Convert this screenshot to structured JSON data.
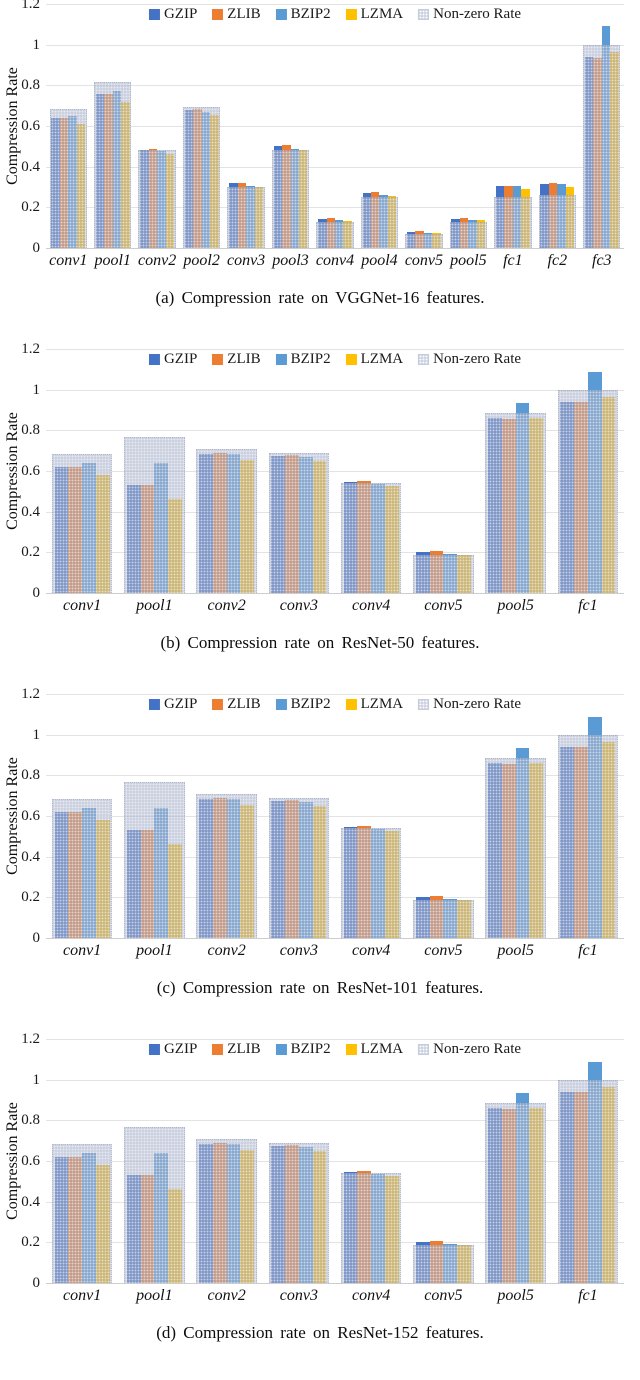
{
  "axis": {
    "y_label": "Compression Rate",
    "y_ticks": [
      "0",
      "0.2",
      "0.4",
      "0.6",
      "0.8",
      "1",
      "1.2"
    ],
    "y_max": 1.2
  },
  "legend": {
    "items": [
      {
        "label": "GZIP",
        "color": "#4472C4"
      },
      {
        "label": "ZLIB",
        "color": "#ED7D31"
      },
      {
        "label": "BZIP2",
        "color": "#5B9BD5"
      },
      {
        "label": "LZMA",
        "color": "#FFC000"
      },
      {
        "label": "Non-zero Rate",
        "color": "#CED4E1",
        "pattern": "dots"
      }
    ]
  },
  "chart_data": [
    {
      "id": "a",
      "type": "bar",
      "title": "(a) Compression rate on VGGNet-16 features.",
      "ylabel": "Compression Rate",
      "ylim": [
        0,
        1.2
      ],
      "grid": true,
      "legend_position": "top",
      "categories": [
        "conv1",
        "pool1",
        "conv2",
        "pool2",
        "conv3",
        "pool3",
        "conv4",
        "pool4",
        "conv5",
        "pool5",
        "fc1",
        "fc2",
        "fc3"
      ],
      "series": [
        {
          "name": "GZIP",
          "values": [
            0.64,
            0.755,
            0.48,
            0.68,
            0.32,
            0.5,
            0.145,
            0.27,
            0.08,
            0.145,
            0.305,
            0.315,
            0.94
          ]
        },
        {
          "name": "ZLIB",
          "values": [
            0.64,
            0.755,
            0.485,
            0.685,
            0.32,
            0.505,
            0.147,
            0.275,
            0.083,
            0.147,
            0.307,
            0.32,
            0.935
          ]
        },
        {
          "name": "BZIP2",
          "values": [
            0.648,
            0.77,
            0.475,
            0.67,
            0.307,
            0.487,
            0.14,
            0.26,
            0.075,
            0.14,
            0.305,
            0.317,
            1.09
          ]
        },
        {
          "name": "LZMA",
          "values": [
            0.61,
            0.72,
            0.46,
            0.655,
            0.3,
            0.48,
            0.134,
            0.255,
            0.072,
            0.138,
            0.29,
            0.3,
            0.965
          ]
        },
        {
          "name": "Non-zero Rate",
          "values": [
            0.685,
            0.815,
            0.48,
            0.695,
            0.3,
            0.48,
            0.13,
            0.25,
            0.07,
            0.13,
            0.25,
            0.26,
            1.0
          ]
        }
      ]
    },
    {
      "id": "b",
      "type": "bar",
      "title": "(b) Compression rate on ResNet-50 features.",
      "ylabel": "Compression Rate",
      "ylim": [
        0,
        1.2
      ],
      "grid": true,
      "legend_position": "top",
      "categories": [
        "conv1",
        "pool1",
        "conv2",
        "conv3",
        "conv4",
        "conv5",
        "pool5",
        "fc1"
      ],
      "series": [
        {
          "name": "GZIP",
          "values": [
            0.62,
            0.53,
            0.685,
            0.675,
            0.548,
            0.2,
            0.86,
            0.94
          ]
        },
        {
          "name": "ZLIB",
          "values": [
            0.62,
            0.53,
            0.687,
            0.677,
            0.55,
            0.205,
            0.858,
            0.94
          ]
        },
        {
          "name": "BZIP2",
          "values": [
            0.64,
            0.64,
            0.684,
            0.667,
            0.538,
            0.19,
            0.935,
            1.085
          ]
        },
        {
          "name": "LZMA",
          "values": [
            0.58,
            0.46,
            0.655,
            0.65,
            0.528,
            0.188,
            0.862,
            0.965
          ]
        },
        {
          "name": "Non-zero Rate",
          "values": [
            0.685,
            0.765,
            0.71,
            0.69,
            0.54,
            0.185,
            0.885,
            1.0
          ]
        }
      ]
    },
    {
      "id": "c",
      "type": "bar",
      "title": "(c) Compression rate on ResNet-101 features.",
      "ylabel": "Compression Rate",
      "ylim": [
        0,
        1.2
      ],
      "grid": true,
      "legend_position": "top",
      "categories": [
        "conv1",
        "pool1",
        "conv2",
        "conv3",
        "conv4",
        "conv5",
        "pool5",
        "fc1"
      ],
      "series": [
        {
          "name": "GZIP",
          "values": [
            0.62,
            0.53,
            0.685,
            0.675,
            0.548,
            0.2,
            0.86,
            0.94
          ]
        },
        {
          "name": "ZLIB",
          "values": [
            0.62,
            0.53,
            0.687,
            0.677,
            0.55,
            0.205,
            0.858,
            0.94
          ]
        },
        {
          "name": "BZIP2",
          "values": [
            0.64,
            0.64,
            0.684,
            0.667,
            0.538,
            0.19,
            0.935,
            1.085
          ]
        },
        {
          "name": "LZMA",
          "values": [
            0.58,
            0.46,
            0.655,
            0.65,
            0.528,
            0.188,
            0.862,
            0.965
          ]
        },
        {
          "name": "Non-zero Rate",
          "values": [
            0.685,
            0.765,
            0.71,
            0.69,
            0.54,
            0.185,
            0.885,
            1.0
          ]
        }
      ]
    },
    {
      "id": "d",
      "type": "bar",
      "title": "(d) Compression rate on ResNet-152 features.",
      "ylabel": "Compression Rate",
      "ylim": [
        0,
        1.2
      ],
      "grid": true,
      "legend_position": "top",
      "categories": [
        "conv1",
        "pool1",
        "conv2",
        "conv3",
        "conv4",
        "conv5",
        "pool5",
        "fc1"
      ],
      "series": [
        {
          "name": "GZIP",
          "values": [
            0.62,
            0.53,
            0.685,
            0.675,
            0.548,
            0.2,
            0.86,
            0.94
          ]
        },
        {
          "name": "ZLIB",
          "values": [
            0.62,
            0.53,
            0.687,
            0.677,
            0.55,
            0.205,
            0.858,
            0.94
          ]
        },
        {
          "name": "BZIP2",
          "values": [
            0.64,
            0.64,
            0.684,
            0.667,
            0.538,
            0.19,
            0.935,
            1.085
          ]
        },
        {
          "name": "LZMA",
          "values": [
            0.58,
            0.46,
            0.655,
            0.65,
            0.528,
            0.188,
            0.862,
            0.965
          ]
        },
        {
          "name": "Non-zero Rate",
          "values": [
            0.685,
            0.765,
            0.71,
            0.69,
            0.54,
            0.185,
            0.885,
            1.0
          ]
        }
      ]
    }
  ]
}
